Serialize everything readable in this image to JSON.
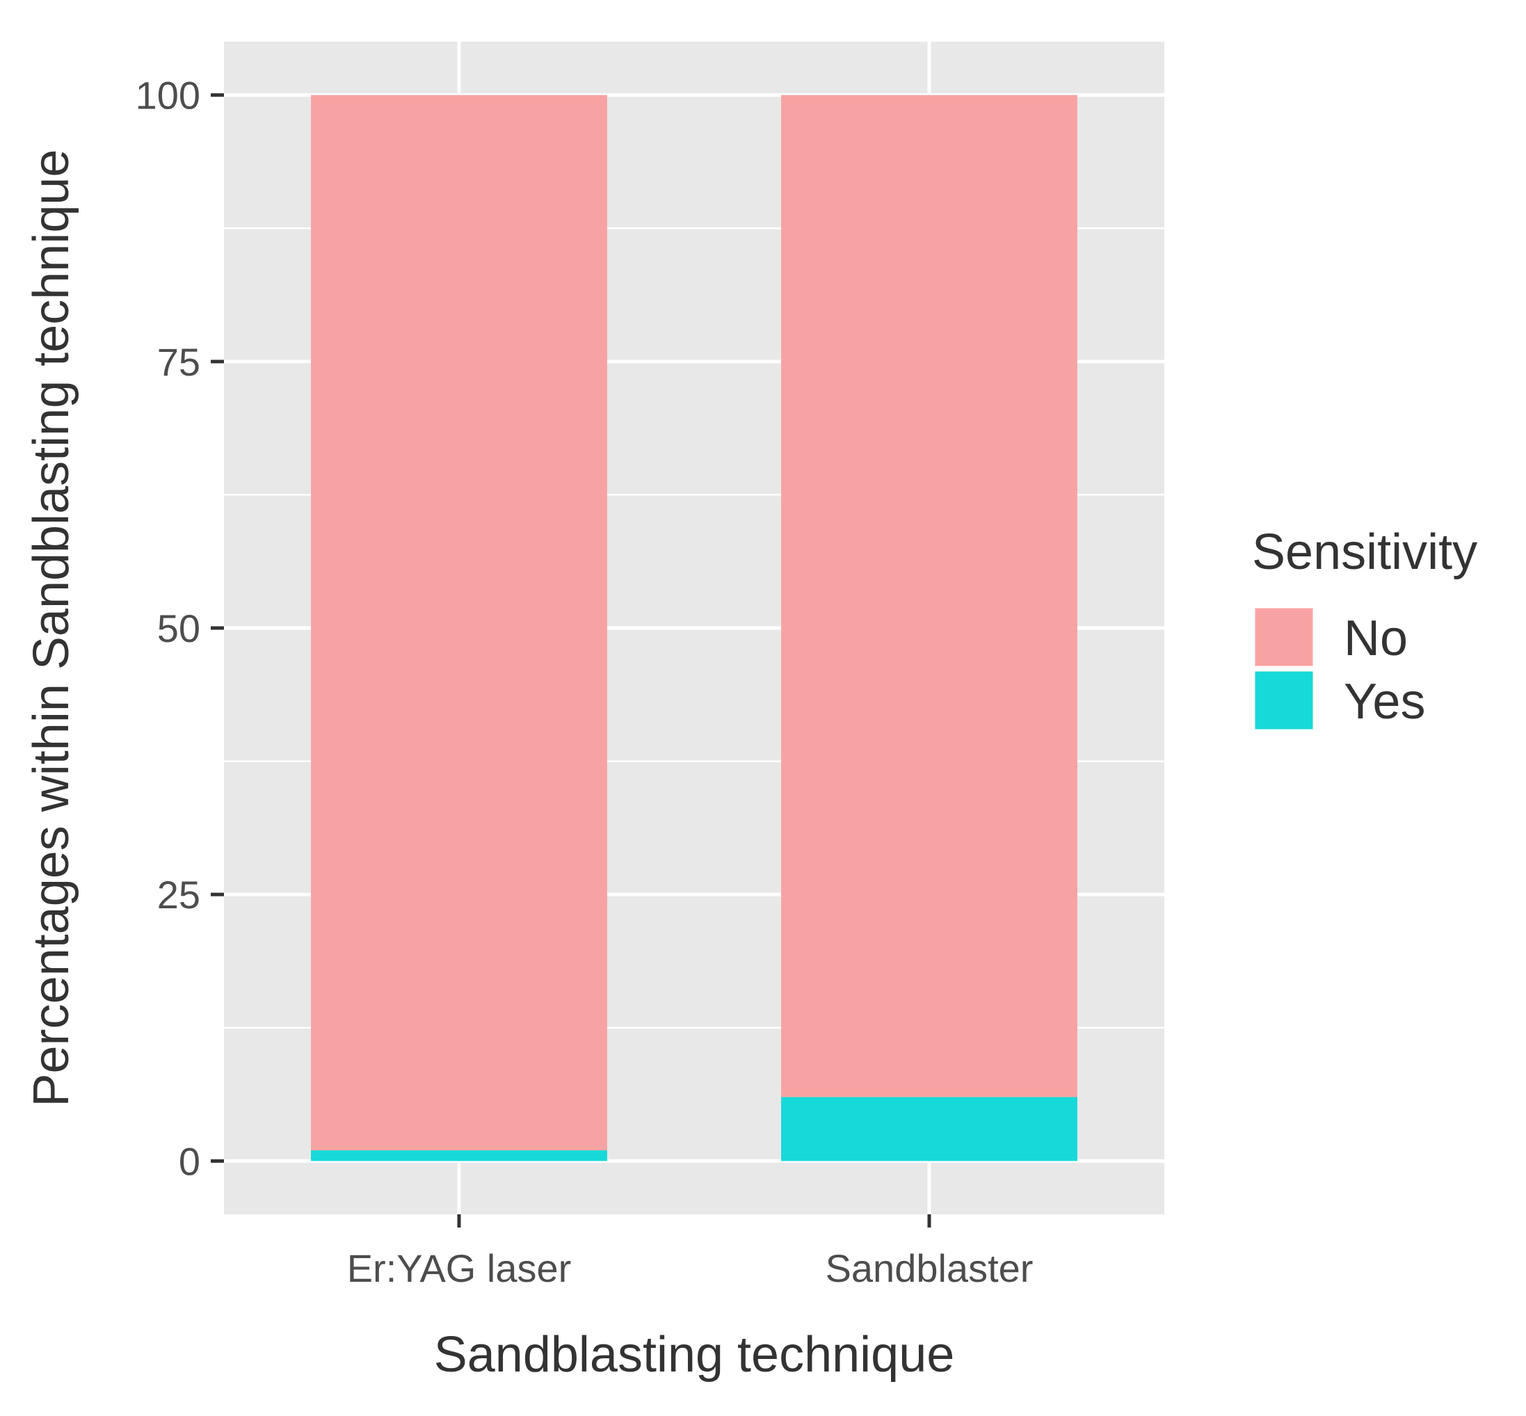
{
  "chart_data": {
    "type": "bar",
    "stacked": true,
    "categories": [
      "Er:YAG laser",
      "Sandblaster"
    ],
    "series": [
      {
        "name": "No",
        "values": [
          99,
          94
        ],
        "color": "#F8A3A3"
      },
      {
        "name": "Yes",
        "values": [
          1,
          6
        ],
        "color": "#17D9D9"
      }
    ],
    "xlabel": "Sandblasting technique",
    "ylabel": "Percentages within Sandblasting technique",
    "ylim": [
      -5,
      105
    ],
    "yticks": [
      0,
      25,
      50,
      75,
      100
    ],
    "ytick_labels": [
      "0",
      "25",
      "50",
      "75",
      "100"
    ],
    "grid": true,
    "legend": {
      "title": "Sensitivity",
      "position": "right"
    },
    "panel_background": "#E8E8E8"
  }
}
